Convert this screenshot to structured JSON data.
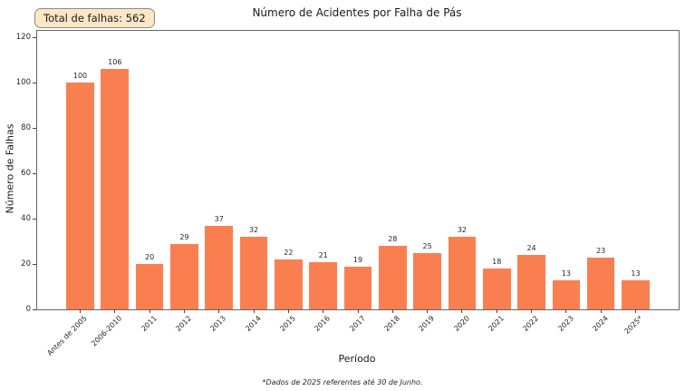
{
  "footnote": "*Dados de 2025 referentes até 30 de Junho.",
  "chart_data": {
    "type": "bar",
    "title": "Número de Acidentes por Falha de Pás",
    "categories": [
      "Antes de 2005",
      "2006-2010",
      "2011",
      "2012",
      "2013",
      "2014",
      "2015",
      "2016",
      "2017",
      "2018",
      "2019",
      "2020",
      "2021",
      "2022",
      "2023",
      "2024",
      "2025*"
    ],
    "values": [
      100,
      106,
      20,
      29,
      37,
      32,
      22,
      21,
      19,
      28,
      25,
      32,
      18,
      24,
      13,
      23,
      13
    ],
    "xlabel": "Período",
    "ylabel": "Número de Falhas",
    "yticks": [
      0,
      20,
      40,
      60,
      80,
      100,
      120
    ],
    "ylim": [
      0,
      123
    ],
    "grid": false,
    "legend": false,
    "value_labels_shown": true,
    "x_tick_rotation_deg": 45,
    "bar_color": "#FA7F50",
    "annotations": {
      "total_box": "Total de falhas: 562",
      "total_box_bg": "#FBE7C6",
      "total_box_border": "#8A8A8A"
    }
  }
}
